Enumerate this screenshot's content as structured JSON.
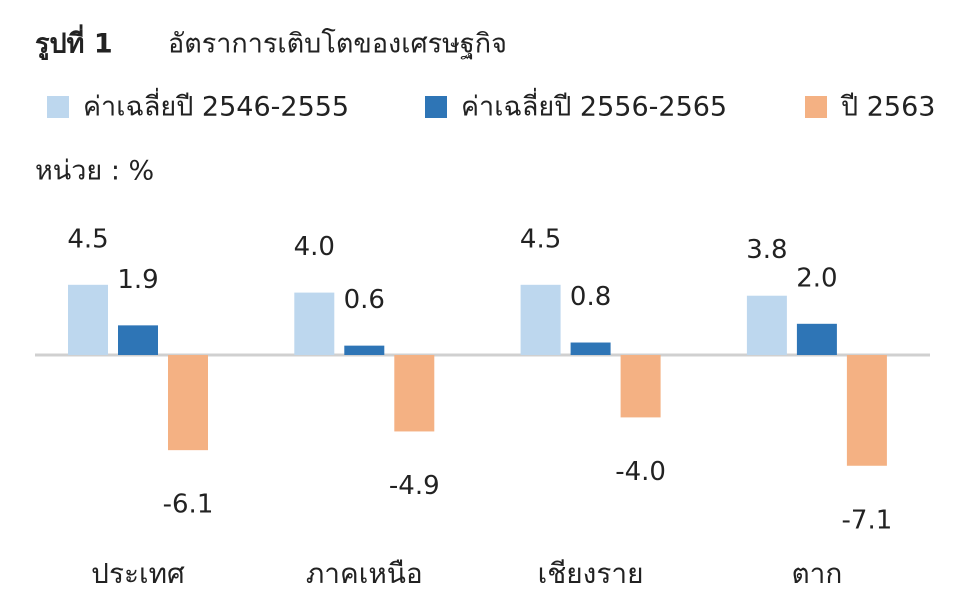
{
  "chart_data": {
    "type": "bar",
    "title_label": "รูปที่ 1",
    "title": "อัตราการเติบโตของเศรษฐกิจ",
    "unit_label": "หน่วย : %",
    "categories": [
      "ประเทศ",
      "ภาคเหนือ",
      "เชียงราย",
      "ตาก"
    ],
    "series": [
      {
        "name": "ค่าเฉลี่ยปี 2546-2555",
        "color": "#bdd7ee",
        "values": [
          4.5,
          4.0,
          4.5,
          3.8
        ],
        "value_labels": [
          "4.5",
          "4.0",
          "4.5",
          "3.8"
        ]
      },
      {
        "name": "ค่าเฉลี่ยปี 2556-2565",
        "color": "#2e75b6",
        "values": [
          1.9,
          0.6,
          0.8,
          2.0
        ],
        "value_labels": [
          "1.9",
          "0.6",
          "0.8",
          "2.0"
        ]
      },
      {
        "name": "ปี 2563",
        "color": "#f4b183",
        "values": [
          -6.1,
          -4.9,
          -4.0,
          -7.1
        ],
        "value_labels": [
          "-6.1",
          "-4.9",
          "-4.0",
          "-7.1"
        ]
      }
    ]
  }
}
